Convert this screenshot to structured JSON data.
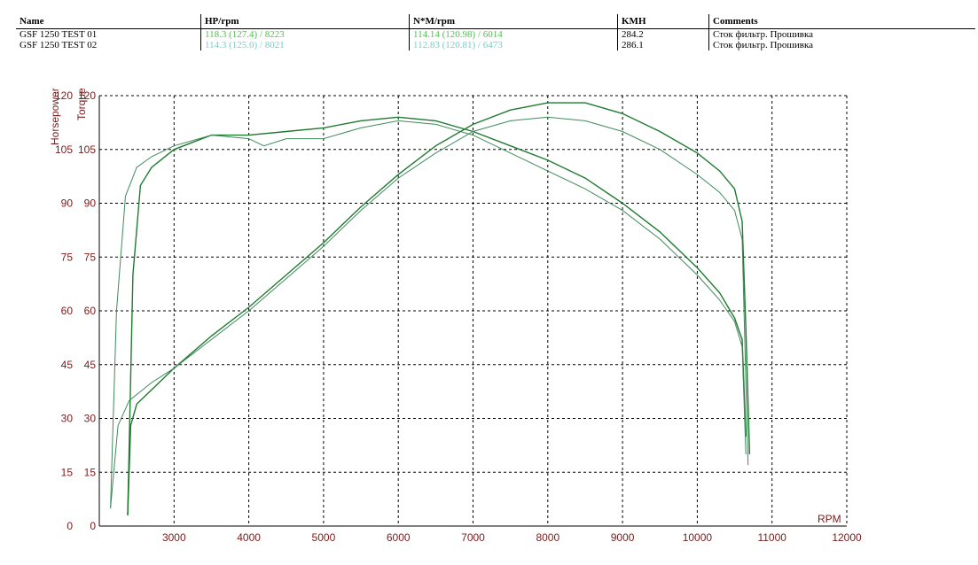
{
  "table": {
    "headers": {
      "name": "Name",
      "hp": "HP/rpm",
      "torque": "N*M/rpm",
      "kmh": "KMH",
      "comments": "Comments"
    },
    "rows": [
      {
        "name": "GSF 1250 TEST 01",
        "hp": "118.3 (127.4) / 8223",
        "torque": "114.14 (120.98) / 6014",
        "kmh": "284.2",
        "comments": "Сток фильтр. Прошивка"
      },
      {
        "name": "GSF 1250 TEST 02",
        "hp": "114.3 (125.0) / 8021",
        "torque": "112.83 (120.81) / 6473",
        "kmh": "286.1",
        "comments": "Сток фильтр. Прошивка"
      }
    ]
  },
  "colors": {
    "grid": "#000000",
    "axis_text": "#7a1b1b",
    "run1": "#1f7a30",
    "run2": "#3f8a5c"
  },
  "chart_data": {
    "type": "line",
    "title": "",
    "xlabel": "RPM",
    "ylabel_left": "Horsepower",
    "ylabel_right": "Torque",
    "xlim": [
      2000,
      12000
    ],
    "ylim": [
      0,
      120
    ],
    "x_ticks": [
      3000,
      4000,
      5000,
      6000,
      7000,
      8000,
      9000,
      10000,
      11000,
      12000
    ],
    "y_ticks": [
      0,
      15,
      30,
      45,
      60,
      75,
      90,
      105,
      120
    ],
    "grid": true,
    "series": [
      {
        "name": "GSF 1250 TEST 01",
        "measure": "horsepower",
        "points": [
          [
            2380,
            3
          ],
          [
            2420,
            28
          ],
          [
            2500,
            34
          ],
          [
            2700,
            38
          ],
          [
            3000,
            44
          ],
          [
            3500,
            53
          ],
          [
            4000,
            61
          ],
          [
            4500,
            70
          ],
          [
            5000,
            79
          ],
          [
            5500,
            89
          ],
          [
            6000,
            98
          ],
          [
            6500,
            106
          ],
          [
            7000,
            112
          ],
          [
            7500,
            116
          ],
          [
            8000,
            118
          ],
          [
            8500,
            118
          ],
          [
            9000,
            115
          ],
          [
            9500,
            110
          ],
          [
            10000,
            104
          ],
          [
            10300,
            99
          ],
          [
            10500,
            94
          ],
          [
            10600,
            85
          ],
          [
            10650,
            55
          ],
          [
            10700,
            20
          ]
        ]
      },
      {
        "name": "GSF 1250 TEST 01",
        "measure": "torque",
        "points": [
          [
            2380,
            3
          ],
          [
            2450,
            70
          ],
          [
            2550,
            95
          ],
          [
            2700,
            100
          ],
          [
            3000,
            105
          ],
          [
            3500,
            109
          ],
          [
            4000,
            109
          ],
          [
            4500,
            110
          ],
          [
            5000,
            111
          ],
          [
            5500,
            113
          ],
          [
            6000,
            114
          ],
          [
            6500,
            113
          ],
          [
            7000,
            110
          ],
          [
            7500,
            106
          ],
          [
            8000,
            102
          ],
          [
            8500,
            97
          ],
          [
            9000,
            90
          ],
          [
            9500,
            82
          ],
          [
            10000,
            72
          ],
          [
            10300,
            65
          ],
          [
            10500,
            58
          ],
          [
            10600,
            52
          ],
          [
            10650,
            25
          ]
        ]
      },
      {
        "name": "GSF 1250 TEST 02",
        "measure": "horsepower",
        "points": [
          [
            2150,
            5
          ],
          [
            2250,
            28
          ],
          [
            2400,
            35
          ],
          [
            2700,
            40
          ],
          [
            3000,
            44
          ],
          [
            3500,
            52
          ],
          [
            4000,
            60
          ],
          [
            4500,
            69
          ],
          [
            5000,
            78
          ],
          [
            5500,
            88
          ],
          [
            6000,
            97
          ],
          [
            6500,
            104
          ],
          [
            7000,
            110
          ],
          [
            7500,
            113
          ],
          [
            8000,
            114
          ],
          [
            8500,
            113
          ],
          [
            9000,
            110
          ],
          [
            9500,
            105
          ],
          [
            10000,
            98
          ],
          [
            10300,
            93
          ],
          [
            10500,
            88
          ],
          [
            10600,
            80
          ],
          [
            10650,
            40
          ],
          [
            10680,
            17
          ]
        ]
      },
      {
        "name": "GSF 1250 TEST 02",
        "measure": "torque",
        "points": [
          [
            2150,
            5
          ],
          [
            2230,
            60
          ],
          [
            2350,
            92
          ],
          [
            2500,
            100
          ],
          [
            2700,
            103
          ],
          [
            3000,
            106
          ],
          [
            3500,
            109
          ],
          [
            4000,
            108
          ],
          [
            4200,
            106
          ],
          [
            4500,
            108
          ],
          [
            5000,
            108
          ],
          [
            5500,
            111
          ],
          [
            6000,
            113
          ],
          [
            6500,
            112
          ],
          [
            7000,
            109
          ],
          [
            7500,
            104
          ],
          [
            8000,
            99
          ],
          [
            8500,
            94
          ],
          [
            9000,
            88
          ],
          [
            9500,
            80
          ],
          [
            10000,
            70
          ],
          [
            10300,
            63
          ],
          [
            10500,
            57
          ],
          [
            10600,
            50
          ],
          [
            10650,
            20
          ]
        ]
      }
    ]
  }
}
